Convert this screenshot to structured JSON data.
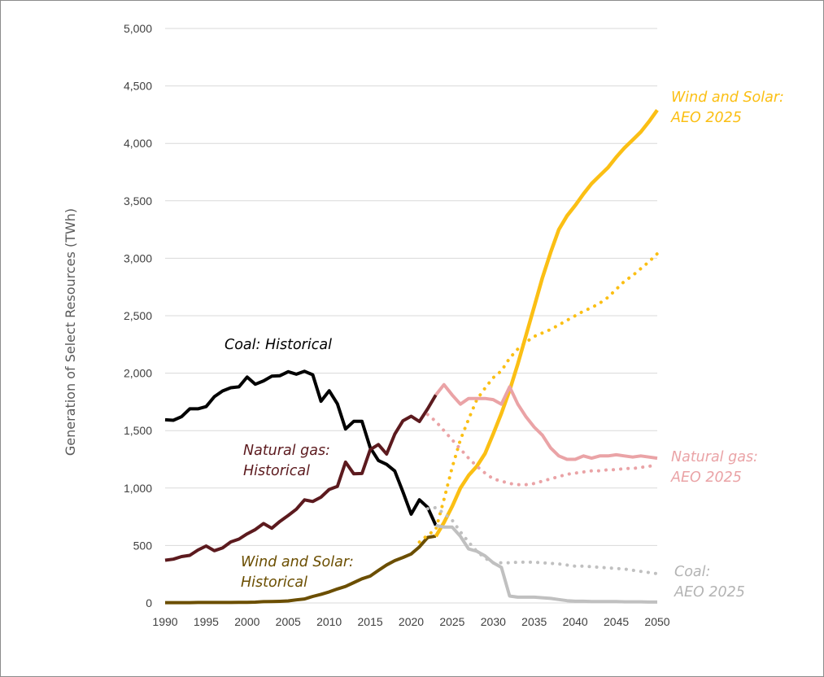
{
  "chart_data": {
    "type": "line",
    "title": "",
    "xlabel": "",
    "ylabel": "Generation of Select Resources (TWh)",
    "xlim": [
      1990,
      2050
    ],
    "ylim": [
      0,
      5000
    ],
    "x_ticks": [
      "1990",
      "1995",
      "2000",
      "2005",
      "2010",
      "2015",
      "2020",
      "2025",
      "2030",
      "2035",
      "2040",
      "2045",
      "2050"
    ],
    "y_ticks": [
      "0",
      "500",
      "1,000",
      "1,500",
      "2,000",
      "2,500",
      "3,000",
      "3,500",
      "4,000",
      "4,500",
      "5,000"
    ],
    "grid": "horizontal",
    "colors": {
      "coal_hist": "#000000",
      "coal_aeo": "#c0c0c0",
      "gas_hist": "#5c1a1e",
      "gas_aeo": "#eaa3a6",
      "ws_hist": "#6b4e00",
      "ws_aeo": "#fbbf14",
      "grid": "#d9d9d9"
    },
    "annotations": [
      {
        "id": "coal-historical",
        "lines": [
          "Coal: Historical"
        ],
        "color": "#000000"
      },
      {
        "id": "natural-gas-historical",
        "lines": [
          "Natural gas:",
          "Historical"
        ],
        "color": "#5c1a1e"
      },
      {
        "id": "wind-solar-historical",
        "lines": [
          "Wind and Solar:",
          "Historical"
        ],
        "color": "#6b4e00"
      },
      {
        "id": "wind-solar-aeo",
        "lines": [
          "Wind and Solar:",
          "AEO 2025"
        ],
        "color": "#fbbf14"
      },
      {
        "id": "natural-gas-aeo",
        "lines": [
          "Natural gas:",
          "AEO 2025"
        ],
        "color": "#eaa3a6"
      },
      {
        "id": "coal-aeo",
        "lines": [
          "Coal:",
          "AEO 2025"
        ],
        "color": "#b3b3b3"
      }
    ],
    "series": [
      {
        "name": "Coal: Historical",
        "color": "#000000",
        "style": "solid",
        "width": 4,
        "x": [
          1990,
          1991,
          1992,
          1993,
          1994,
          1995,
          1996,
          1997,
          1998,
          1999,
          2000,
          2001,
          2002,
          2003,
          2004,
          2005,
          2006,
          2007,
          2008,
          2009,
          2010,
          2011,
          2012,
          2013,
          2014,
          2015,
          2016,
          2017,
          2018,
          2019,
          2020,
          2021,
          2022,
          2023
        ],
        "values": [
          1594,
          1590,
          1621,
          1690,
          1690,
          1709,
          1795,
          1845,
          1873,
          1881,
          1966,
          1904,
          1933,
          1974,
          1978,
          2013,
          1991,
          2016,
          1986,
          1756,
          1847,
          1733,
          1514,
          1581,
          1581,
          1352,
          1240,
          1206,
          1149,
          966,
          773,
          898,
          832,
          675
        ]
      },
      {
        "name": "Natural gas: Historical",
        "color": "#5c1a1e",
        "style": "solid",
        "width": 4,
        "x": [
          1990,
          1991,
          1992,
          1993,
          1994,
          1995,
          1996,
          1997,
          1998,
          1999,
          2000,
          2001,
          2002,
          2003,
          2004,
          2005,
          2006,
          2007,
          2008,
          2009,
          2010,
          2011,
          2012,
          2013,
          2014,
          2015,
          2016,
          2017,
          2018,
          2019,
          2020,
          2021,
          2022,
          2023
        ],
        "values": [
          372,
          381,
          404,
          414,
          460,
          496,
          455,
          479,
          531,
          556,
          601,
          639,
          691,
          650,
          710,
          761,
          816,
          897,
          883,
          921,
          988,
          1014,
          1226,
          1124,
          1127,
          1334,
          1379,
          1296,
          1469,
          1586,
          1625,
          1579,
          1689,
          1810
        ]
      },
      {
        "name": "Wind and Solar: Historical",
        "color": "#6b4e00",
        "style": "solid",
        "width": 4,
        "x": [
          1990,
          1991,
          1992,
          1993,
          1994,
          1995,
          1996,
          1997,
          1998,
          1999,
          2000,
          2001,
          2002,
          2003,
          2004,
          2005,
          2006,
          2007,
          2008,
          2009,
          2010,
          2011,
          2012,
          2013,
          2014,
          2015,
          2016,
          2017,
          2018,
          2019,
          2020,
          2021,
          2022,
          2023
        ],
        "values": [
          3,
          3,
          3,
          3,
          4,
          4,
          4,
          4,
          4,
          5,
          6,
          7,
          11,
          12,
          14,
          18,
          27,
          35,
          57,
          75,
          96,
          122,
          144,
          177,
          210,
          234,
          283,
          331,
          368,
          396,
          426,
          488,
          570,
          582
        ]
      },
      {
        "name": "Wind and Solar: AEO 2025",
        "color": "#fbbf14",
        "style": "solid",
        "width": 4.5,
        "x": [
          2023,
          2024,
          2025,
          2026,
          2027,
          2028,
          2029,
          2030,
          2031,
          2032,
          2033,
          2034,
          2035,
          2036,
          2037,
          2038,
          2039,
          2040,
          2041,
          2042,
          2043,
          2044,
          2045,
          2046,
          2047,
          2048,
          2049,
          2050
        ],
        "values": [
          580,
          700,
          840,
          1000,
          1110,
          1190,
          1300,
          1470,
          1650,
          1850,
          2080,
          2330,
          2580,
          2830,
          3050,
          3250,
          3370,
          3460,
          3560,
          3650,
          3720,
          3790,
          3880,
          3960,
          4030,
          4100,
          4190,
          4290
        ]
      },
      {
        "name": "Wind and Solar: AEO 2025 (dotted)",
        "color": "#fbbf14",
        "style": "dotted",
        "width": 4,
        "x": [
          2021,
          2022,
          2023,
          2024,
          2025,
          2026,
          2027,
          2028,
          2029,
          2030,
          2031,
          2032,
          2033,
          2034,
          2035,
          2036,
          2037,
          2038,
          2039,
          2040,
          2041,
          2042,
          2043,
          2044,
          2045,
          2046,
          2047,
          2048,
          2049,
          2050
        ],
        "values": [
          530,
          590,
          640,
          900,
          1180,
          1420,
          1600,
          1770,
          1870,
          1960,
          2020,
          2130,
          2210,
          2270,
          2320,
          2350,
          2380,
          2420,
          2460,
          2500,
          2540,
          2570,
          2610,
          2660,
          2730,
          2800,
          2850,
          2910,
          2970,
          3040
        ]
      },
      {
        "name": "Natural gas: AEO 2025",
        "color": "#eaa3a6",
        "style": "solid",
        "width": 4,
        "x": [
          2023,
          2024,
          2025,
          2026,
          2027,
          2028,
          2029,
          2030,
          2031,
          2032,
          2033,
          2034,
          2035,
          2036,
          2037,
          2038,
          2039,
          2040,
          2041,
          2042,
          2043,
          2044,
          2045,
          2046,
          2047,
          2048,
          2049,
          2050
        ],
        "values": [
          1810,
          1900,
          1810,
          1730,
          1780,
          1780,
          1780,
          1770,
          1730,
          1880,
          1730,
          1620,
          1530,
          1460,
          1350,
          1280,
          1250,
          1250,
          1280,
          1260,
          1280,
          1280,
          1290,
          1280,
          1270,
          1280,
          1270,
          1260
        ]
      },
      {
        "name": "Natural gas: AEO 2025 (dotted)",
        "color": "#eaa3a6",
        "style": "dotted",
        "width": 4,
        "x": [
          2022,
          2023,
          2024,
          2025,
          2026,
          2027,
          2028,
          2029,
          2030,
          2031,
          2032,
          2033,
          2034,
          2035,
          2036,
          2037,
          2038,
          2039,
          2040,
          2041,
          2042,
          2043,
          2044,
          2045,
          2046,
          2047,
          2048,
          2049,
          2050
        ],
        "values": [
          1640,
          1580,
          1500,
          1420,
          1340,
          1260,
          1190,
          1130,
          1080,
          1060,
          1040,
          1030,
          1030,
          1040,
          1060,
          1080,
          1100,
          1120,
          1130,
          1140,
          1150,
          1150,
          1160,
          1160,
          1170,
          1170,
          1180,
          1190,
          1200
        ]
      },
      {
        "name": "Coal: AEO 2025",
        "color": "#c0c0c0",
        "style": "solid",
        "width": 4,
        "x": [
          2023,
          2024,
          2025,
          2026,
          2027,
          2028,
          2029,
          2030,
          2031,
          2032,
          2033,
          2034,
          2035,
          2036,
          2037,
          2038,
          2039,
          2040,
          2041,
          2042,
          2043,
          2044,
          2045,
          2046,
          2047,
          2048,
          2049,
          2050
        ],
        "values": [
          675,
          660,
          660,
          580,
          470,
          450,
          410,
          350,
          310,
          60,
          50,
          50,
          50,
          45,
          40,
          30,
          20,
          15,
          15,
          12,
          12,
          12,
          12,
          10,
          10,
          10,
          8,
          8
        ]
      },
      {
        "name": "Coal: AEO 2025 (dotted)",
        "color": "#c0c0c0",
        "style": "dotted",
        "width": 4,
        "x": [
          2022,
          2023,
          2024,
          2025,
          2026,
          2027,
          2028,
          2029,
          2030,
          2031,
          2032,
          2033,
          2034,
          2035,
          2036,
          2037,
          2038,
          2039,
          2040,
          2041,
          2042,
          2043,
          2044,
          2045,
          2046,
          2047,
          2048,
          2049,
          2050
        ],
        "values": [
          820,
          830,
          780,
          720,
          620,
          530,
          450,
          390,
          350,
          350,
          350,
          355,
          355,
          355,
          350,
          345,
          340,
          330,
          320,
          320,
          315,
          310,
          305,
          300,
          295,
          285,
          275,
          265,
          255
        ]
      }
    ]
  }
}
